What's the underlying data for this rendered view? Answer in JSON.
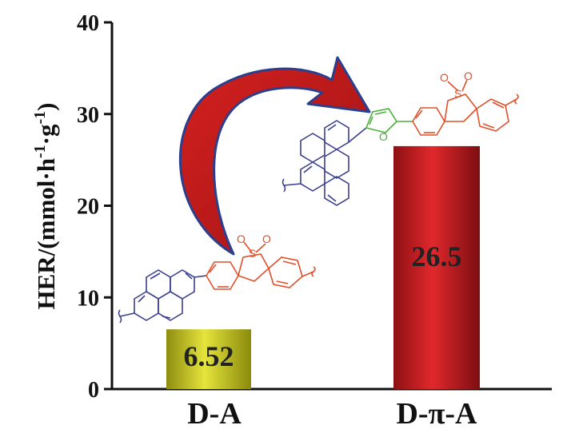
{
  "chart_data": {
    "type": "bar",
    "categories": [
      "D-A",
      "D-π-A"
    ],
    "values": [
      6.52,
      26.5
    ],
    "data_labels": [
      "6.52",
      "26.5"
    ],
    "xlabel": "",
    "ylabel": {
      "prefix": "HER/(mmol·h",
      "sup1": "-1",
      "middle": "·g",
      "sup2": "-1",
      "suffix": ")"
    },
    "ylim": [
      0,
      40
    ],
    "yticks": [
      0,
      10,
      20,
      30,
      40
    ],
    "grid": false,
    "bar_colors": [
      "#c8c81a",
      "#c01c20"
    ]
  },
  "structures": {
    "da_sulfone_oxygen_left": "O",
    "da_sulfone_sulfur": "S",
    "da_sulfone_oxygen_right": "O",
    "dpia_sulfone_oxygen_left": "O",
    "dpia_sulfone_sulfur": "S",
    "dpia_sulfone_oxygen_right": "O",
    "dpia_furan_oxygen": "O"
  },
  "colors": {
    "donor": "#3a3f8f",
    "acceptor": "#e0502a",
    "bridge": "#4caf3c",
    "arrow": "#c31c1c",
    "arrow_outline": "#2c3f8c"
  }
}
